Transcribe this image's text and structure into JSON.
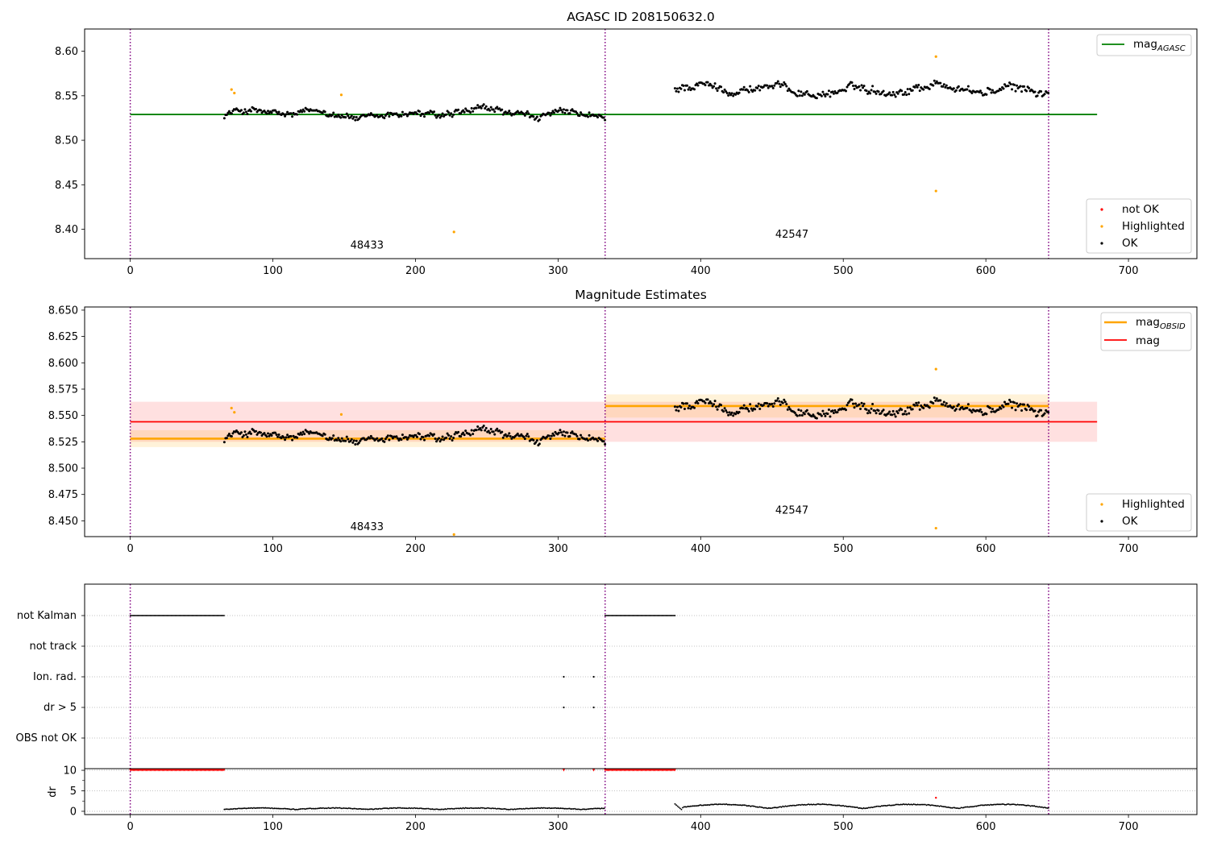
{
  "chart_data": [
    {
      "type": "scatter",
      "title": "AGASC ID 208150632.0",
      "xlim": [
        -32,
        748
      ],
      "ylim": [
        8.367,
        8.625
      ],
      "xticks": [
        0,
        100,
        200,
        300,
        400,
        500,
        600,
        700
      ],
      "yticks": [
        8.4,
        8.45,
        8.5,
        8.55,
        8.6
      ],
      "ytick_labels": [
        "8.40",
        "8.45",
        "8.50",
        "8.55",
        "8.60"
      ],
      "obs_boundaries": [
        0,
        333,
        644
      ],
      "colors": {
        "boundary": "#800080",
        "agasc_line": "#008000",
        "ok": "#000000",
        "highlighted": "#ffa500",
        "not_ok": "#ff0000"
      },
      "lines": [
        {
          "name": "mag_AGASC",
          "x": [
            0,
            678
          ],
          "y": [
            8.529,
            8.529
          ]
        }
      ],
      "segments": [
        {
          "x_start": 66,
          "x_end": 333,
          "base": 8.529,
          "amp": 0.009
        },
        {
          "x_start": 382,
          "x_end": 644,
          "base": 8.557,
          "amp": 0.01
        }
      ],
      "highlighted_points": [
        {
          "x": 71,
          "y": 8.557
        },
        {
          "x": 73,
          "y": 8.553
        },
        {
          "x": 148,
          "y": 8.551
        },
        {
          "x": 227,
          "y": 8.397
        },
        {
          "x": 565,
          "y": 8.594
        },
        {
          "x": 565,
          "y": 8.443
        }
      ],
      "annotations": [
        {
          "text": "48433",
          "x": 166,
          "y": 8.382
        },
        {
          "text": "42547",
          "x": 464,
          "y": 8.394
        }
      ],
      "legend_lines": [
        {
          "label_main": "mag",
          "label_sub": "AGASC"
        }
      ],
      "legend_markers": [
        {
          "label": "not OK",
          "color": "#ff0000"
        },
        {
          "label": "Highlighted",
          "color": "#ffa500"
        },
        {
          "label": "OK",
          "color": "#000000"
        }
      ]
    },
    {
      "type": "scatter",
      "title": "Magnitude Estimates",
      "xlim": [
        -32,
        748
      ],
      "ylim": [
        8.435,
        8.653
      ],
      "xticks": [
        0,
        100,
        200,
        300,
        400,
        500,
        600,
        700
      ],
      "yticks": [
        8.45,
        8.475,
        8.5,
        8.525,
        8.55,
        8.575,
        8.6,
        8.625,
        8.65
      ],
      "ytick_labels": [
        "8.450",
        "8.475",
        "8.500",
        "8.525",
        "8.550",
        "8.575",
        "8.600",
        "8.625",
        "8.650"
      ],
      "obs_boundaries": [
        0,
        333,
        644
      ],
      "colors": {
        "boundary": "#800080",
        "mag_obsid": "#ffa500",
        "mag": "#ff0000",
        "ok": "#000000",
        "highlighted": "#ffa500"
      },
      "bands": [
        {
          "x": [
            0,
            678
          ],
          "y": [
            8.525,
            8.563
          ],
          "color": "#ff0000",
          "opacity": 0.12
        },
        {
          "x": [
            0,
            333
          ],
          "y": [
            8.52,
            8.536
          ],
          "color": "#ffa500",
          "opacity": 0.15
        },
        {
          "x": [
            333,
            644
          ],
          "y": [
            8.548,
            8.57
          ],
          "color": "#ffa500",
          "opacity": 0.15
        }
      ],
      "lines": [
        {
          "name": "mag_OBSID",
          "x": [
            0,
            333
          ],
          "y": [
            8.528,
            8.528
          ],
          "color": "#ffa500"
        },
        {
          "name": "mag_OBSID",
          "x": [
            333,
            644
          ],
          "y": [
            8.559,
            8.559
          ],
          "color": "#ffa500"
        },
        {
          "name": "mag",
          "x": [
            0,
            678
          ],
          "y": [
            8.544,
            8.544
          ],
          "color": "#ff0000"
        }
      ],
      "segments": [
        {
          "x_start": 66,
          "x_end": 333,
          "base": 8.529,
          "amp": 0.009
        },
        {
          "x_start": 382,
          "x_end": 644,
          "base": 8.557,
          "amp": 0.01
        }
      ],
      "highlighted_points": [
        {
          "x": 71,
          "y": 8.557
        },
        {
          "x": 73,
          "y": 8.553
        },
        {
          "x": 148,
          "y": 8.551
        },
        {
          "x": 227,
          "y": 8.437
        },
        {
          "x": 565,
          "y": 8.594
        },
        {
          "x": 565,
          "y": 8.443
        }
      ],
      "annotations": [
        {
          "text": "48433",
          "x": 166,
          "y": 8.444
        },
        {
          "text": "42547",
          "x": 464,
          "y": 8.46
        }
      ],
      "legend_lines": [
        {
          "label_main": "mag",
          "label_sub": "OBSID",
          "color": "#ffa500"
        },
        {
          "label_main": "mag",
          "label_sub": "",
          "color": "#ff0000"
        }
      ],
      "legend_markers": [
        {
          "label": "Highlighted",
          "color": "#ffa500"
        },
        {
          "label": "OK",
          "color": "#000000"
        }
      ]
    },
    {
      "type": "scatter",
      "title": "",
      "xlim": [
        -32,
        748
      ],
      "xticks": [
        0,
        100,
        200,
        300,
        400,
        500,
        600,
        700
      ],
      "obs_boundaries": [
        0,
        333,
        644
      ],
      "flag_categories": [
        "not Kalman",
        "not track",
        "Ion. rad.",
        "dr > 5",
        "OBS not OK"
      ],
      "flags": {
        "not Kalman": {
          "ranges": [
            [
              0,
              66
            ],
            [
              333,
              382
            ]
          ]
        },
        "not track": {
          "ranges": []
        },
        "Ion. rad.": {
          "points": [
            304,
            325
          ]
        },
        "dr > 5": {
          "points": [
            304,
            325
          ]
        },
        "OBS not OK": {
          "ranges": []
        }
      },
      "dr_panel": {
        "ylabel": "dr",
        "ylim": [
          -0.8,
          10.4
        ],
        "yticks": [
          0,
          5,
          10
        ],
        "minor_yticks": [
          2.5,
          7.5
        ],
        "clipped_value": 10,
        "clipped_ranges": [
          [
            0,
            66
          ],
          [
            333,
            382
          ]
        ],
        "clipped_points": [
          304,
          325
        ],
        "outlier_points": [
          {
            "x": 565,
            "y": 3.3
          }
        ],
        "colors": {
          "clipped": "#ff0000",
          "normal": "#000000"
        }
      }
    }
  ]
}
